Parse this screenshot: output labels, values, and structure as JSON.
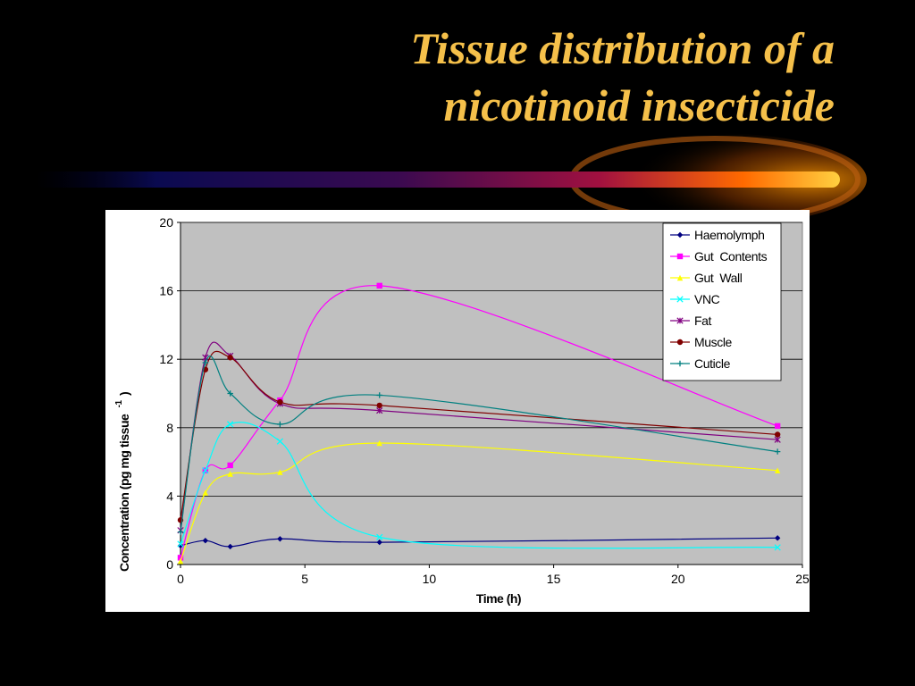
{
  "slide": {
    "title_line1": "Tissue distribution of a",
    "title_line2": "nicotinoid insecticide",
    "title_color": "#f5c04a"
  },
  "chart_data": {
    "type": "line",
    "xlabel": "Time (h)",
    "ylabel": "Concentration (pg mg tissue",
    "ylabel_superscript": "-1",
    "ylabel_close": ")",
    "xlim": [
      0,
      25
    ],
    "ylim": [
      0,
      20
    ],
    "xticks": [
      0,
      5,
      10,
      15,
      20,
      25
    ],
    "yticks": [
      0,
      4,
      8,
      12,
      16,
      20
    ],
    "grid": true,
    "legend_position": "top-right",
    "plot_background": "#c0c0c0",
    "x": [
      0,
      1,
      2,
      4,
      8,
      24
    ],
    "series": [
      {
        "name": "Haemolymph",
        "marker": "diamond",
        "color": "#000080",
        "values": [
          1.1,
          1.4,
          1.05,
          1.5,
          1.3,
          1.55
        ]
      },
      {
        "name": "Gut  Contents",
        "marker": "square",
        "color": "#ff00ff",
        "values": [
          0.4,
          5.5,
          5.8,
          9.6,
          16.3,
          8.1
        ]
      },
      {
        "name": "Gut  Wall",
        "marker": "triangle",
        "color": "#ffff00",
        "values": [
          0.2,
          4.2,
          5.3,
          5.4,
          7.1,
          5.5
        ]
      },
      {
        "name": "VNC",
        "marker": "x",
        "color": "#00ffff",
        "values": [
          1.2,
          5.5,
          8.2,
          7.2,
          1.6,
          1.0
        ]
      },
      {
        "name": "Fat",
        "marker": "star",
        "color": "#800080",
        "values": [
          2.0,
          12.1,
          12.2,
          9.4,
          9.0,
          7.3
        ]
      },
      {
        "name": "Muscle",
        "marker": "circle",
        "color": "#800000",
        "values": [
          2.6,
          11.4,
          12.1,
          9.5,
          9.3,
          7.6
        ]
      },
      {
        "name": "Cuticle",
        "marker": "plus",
        "color": "#008080",
        "values": [
          1.9,
          11.8,
          10.0,
          8.2,
          9.9,
          6.6
        ]
      }
    ]
  }
}
